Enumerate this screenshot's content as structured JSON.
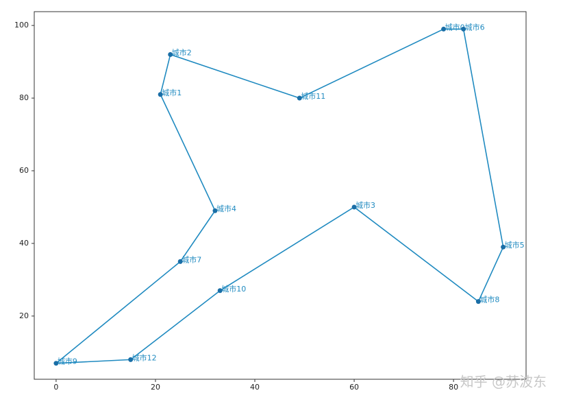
{
  "chart_data": {
    "type": "line",
    "x": [
      23,
      49,
      78,
      82,
      90,
      85,
      60,
      33,
      15,
      0,
      25,
      32,
      21
    ],
    "series": [
      {
        "color": "#1f8ac0",
        "marker_color": "#1a6ea6",
        "values": [
          92,
          80,
          99,
          99,
          39,
          24,
          50,
          27,
          8,
          7,
          35,
          49,
          81
        ],
        "point_labels": [
          "城市2",
          "城市11",
          "城市0",
          "城市6",
          "城市5",
          "城市8",
          "城市3",
          "城市10",
          "城市12",
          "城市9",
          "城市7",
          "城市4",
          "城市1"
        ]
      }
    ],
    "closed": true,
    "xlim": [
      -4.4,
      94.6
    ],
    "xticks": [
      0,
      20,
      40,
      60,
      80
    ],
    "ylim": [
      2.6,
      103.8
    ],
    "yticks": [
      20,
      40,
      60,
      80,
      100
    ],
    "grid": false,
    "watermark": "知乎 @苏波东"
  }
}
